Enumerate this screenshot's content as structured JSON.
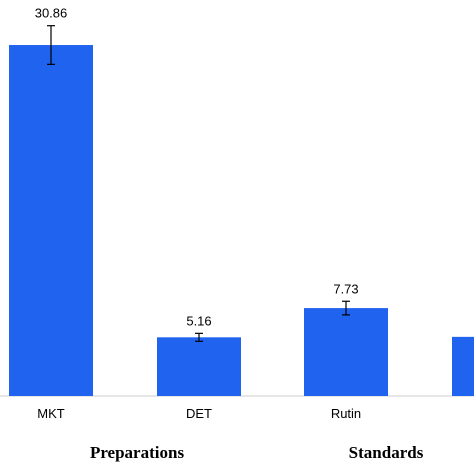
{
  "chart_data": {
    "type": "bar",
    "title": "",
    "xlabel": "",
    "ylabel": "",
    "categories": [
      "MKT",
      "DET",
      "Rutin",
      ""
    ],
    "values": [
      30.86,
      5.16,
      7.73,
      5.2
    ],
    "errors": [
      1.7,
      0.35,
      0.6,
      0
    ],
    "data_labels": [
      "30.86",
      "5.16",
      "7.73",
      ""
    ],
    "groups": [
      {
        "label": "Preparations",
        "categories": [
          "MKT",
          "DET"
        ]
      },
      {
        "label": "Standards",
        "categories": [
          "Rutin",
          ""
        ]
      }
    ],
    "ylim": [
      0,
      33.5
    ],
    "grid": false,
    "bar_color": "#1f63ee",
    "axis_color": "#cccccc"
  }
}
